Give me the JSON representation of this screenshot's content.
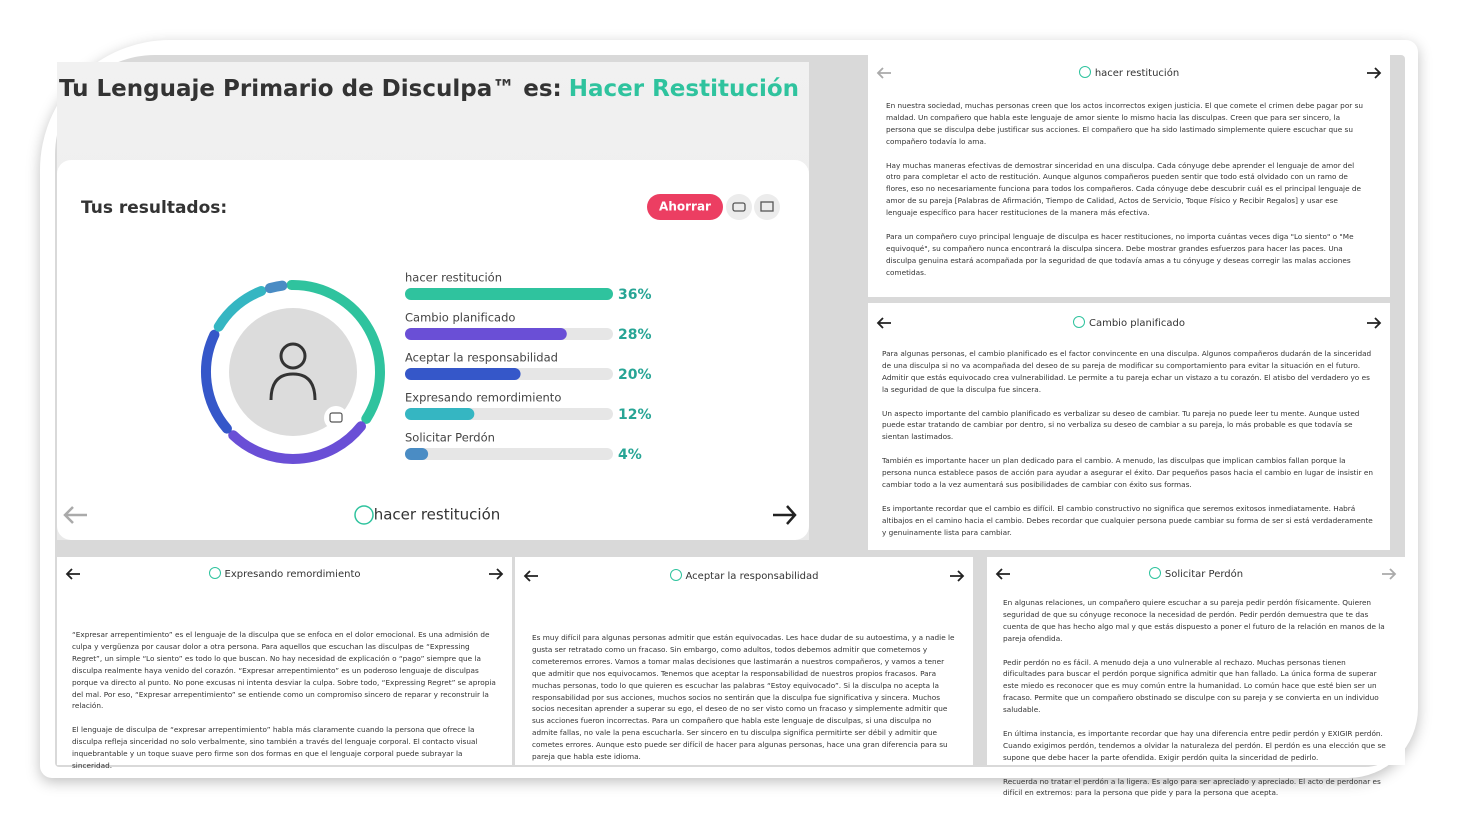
{
  "header": {
    "title": "Tu Lenguaje Primario de Disculpa™ es:",
    "highlight": "Hacer Restitución"
  },
  "results": {
    "heading": "Tus resultados:",
    "save_button": "Ahorrar",
    "nav_label": "hacer restitución"
  },
  "chart_data": {
    "type": "bar",
    "orientation": "horizontal",
    "categories": [
      "hacer restitución",
      "Cambio planificado",
      "Aceptar la responsabilidad",
      "Expresando remordimiento",
      "Solicitar Perdón"
    ],
    "values": [
      36,
      28,
      20,
      12,
      4
    ],
    "value_labels": [
      "36%",
      "28%",
      "20%",
      "12%",
      "4%"
    ],
    "colors": [
      "#2fc39e",
      "#6a4fd6",
      "#3557c9",
      "#35b6c2",
      "#4a8cc4"
    ],
    "xlim": [
      0,
      36
    ]
  },
  "cards": [
    {
      "title": "hacer restitución",
      "paragraphs": [
        "En nuestra sociedad, muchas personas creen que los actos incorrectos exigen justicia. El que comete el crimen debe pagar por su maldad. Un compañero que habla este lenguaje de amor siente lo mismo hacia las disculpas. Creen que para ser sincero, la persona que se disculpa debe justificar sus acciones. El compañero que ha sido lastimado simplemente quiere escuchar que su compañero todavía lo ama.",
        "Hay muchas maneras efectivas de demostrar sinceridad en una disculpa. Cada cónyuge debe aprender el lenguaje de amor del otro para completar el acto de restitución. Aunque algunos compañeros pueden sentir que todo está olvidado con un ramo de flores, eso no necesariamente funciona para todos los compañeros. Cada cónyuge debe descubrir cuál es el principal lenguaje de amor de su pareja [Palabras de Afirmación, Tiempo de Calidad, Actos de Servicio, Toque Físico y Recibir Regalos] y usar ese lenguaje específico para hacer restituciones de la manera más efectiva.",
        "Para un compañero cuyo principal lenguaje de disculpa es hacer restituciones, no importa cuántas veces diga \"Lo siento\" o \"Me equivoqué\", su compañero nunca encontrará la disculpa sincera. Debe mostrar grandes esfuerzos para hacer las paces. Una disculpa genuina estará acompañada por la seguridad de que todavía amas a tu cónyuge y deseas corregir las malas acciones cometidas."
      ]
    },
    {
      "title": "Cambio planificado",
      "paragraphs": [
        "Para algunas personas, el cambio planificado es el factor convincente en una disculpa. Algunos compañeros dudarán de la sinceridad de una disculpa si no va acompañada del deseo de su pareja de modificar su comportamiento para evitar la situación en el futuro. Admitir que estás equivocado crea vulnerabilidad. Le permite a tu pareja echar un vistazo a tu corazón. El atisbo del verdadero yo es la seguridad de que la disculpa fue sincera.",
        "Un aspecto importante del cambio planificado es verbalizar su deseo de cambiar. Tu pareja no puede leer tu mente. Aunque usted puede estar tratando de cambiar por dentro, si no verbaliza su deseo de cambiar a su pareja, lo más probable es que todavía se sientan lastimados.",
        "También es importante hacer un plan dedicado para el cambio. A menudo, las disculpas que implican cambios fallan porque la persona nunca establece pasos de acción para ayudar a asegurar el éxito. Dar pequeños pasos hacia el cambio en lugar de insistir en cambiar todo a la vez aumentará sus posibilidades de cambiar con éxito sus formas.",
        "Es importante recordar que el cambio es difícil. El cambio constructivo no significa que seremos exitosos inmediatamente. Habrá altibajos en el camino hacia el cambio. Debes recordar que cualquier persona puede cambiar su forma de ser si está verdaderamente y genuinamente lista para cambiar."
      ]
    },
    {
      "title": "Expresando remordimiento",
      "paragraphs": [
        "“Expresar arrepentimiento” es el lenguaje de la disculpa que se enfoca en el dolor emocional. Es una admisión de culpa y vergüenza por causar dolor a otra persona. Para aquellos que escuchan las disculpas de “Expressing Regret”, un simple “Lo siento” es todo lo que buscan. No hay necesidad de explicación o “pago” siempre que la disculpa realmente haya venido del corazón. “Expresar arrepentimiento” es un poderoso lenguaje de disculpas porque va directo al punto. No pone excusas ni intenta desviar la culpa. Sobre todo, “Expressing Regret” se apropia del mal. Por eso, “Expresar arrepentimiento” se entiende como un compromiso sincero de reparar y reconstruir la relación.",
        "El lenguaje de disculpa de “expresar arrepentimiento” habla más claramente cuando la persona que ofrece la disculpa refleja sinceridad no solo verbalmente, sino también a través del lenguaje corporal. El contacto visual inquebrantable y un toque suave pero firme son dos formas en que el lenguaje corporal puede subrayar la sinceridad."
      ]
    },
    {
      "title": "Aceptar la responsabilidad",
      "paragraphs": [
        "Es muy difícil para algunas personas admitir que están equivocadas. Les hace dudar de su autoestima, y a nadie le gusta ser retratado como un fracaso. Sin embargo, como adultos, todos debemos admitir que cometemos y cometeremos errores. Vamos a tomar malas decisiones que lastimarán a nuestros compañeros, y vamos a tener que admitir que nos equivocamos. Tenemos que aceptar la responsabilidad de nuestros propios fracasos. Para muchas personas, todo lo que quieren es escuchar las palabras “Estoy equivocado”. Si la disculpa no acepta la responsabilidad por sus acciones, muchos socios no sentirán que la disculpa fue significativa y sincera. Muchos socios necesitan aprender a superar su ego, el deseo de no ser visto como un fracaso y simplemente admitir que sus acciones fueron incorrectas. Para un compañero que habla este lenguaje de disculpas, si una disculpa no admite fallas, no vale la pena escucharla. Ser sincero en tu disculpa significa permitirte ser débil y admitir que cometes errores. Aunque esto puede ser difícil de hacer para algunas personas, hace una gran diferencia para su pareja que habla este idioma."
      ]
    },
    {
      "title": "Solicitar Perdón",
      "paragraphs": [
        "En algunas relaciones, un compañero quiere escuchar a su pareja pedir perdón físicamente. Quieren seguridad de que su cónyuge reconoce la necesidad de perdón. Pedir perdón demuestra que te das cuenta de que has hecho algo mal y que estás dispuesto a poner el futuro de la relación en manos de la pareja ofendida.",
        "Pedir perdón no es fácil. A menudo deja a uno vulnerable al rechazo. Muchas personas tienen dificultades para buscar el perdón porque significa admitir que han fallado. La única forma de superar este miedo es reconocer que es muy común entre la humanidad. Lo común hace que esté bien ser un fracaso. Permite que un compañero obstinado se disculpe con su pareja y se convierta en un individuo saludable.",
        "En última instancia, es importante recordar que hay una diferencia entre pedir perdón y EXIGIR perdón. Cuando exigimos perdón, tendemos a olvidar la naturaleza del perdón. El perdón es una elección que se supone que debe hacer la parte ofendida. Exigir perdón quita la sinceridad de pedirlo.",
        "Recuerda no tratar el perdón a la ligera. Es algo para ser apreciado y apreciado. El acto de perdonar es difícil en extremos: para la persona que pide y para la persona que acepta."
      ]
    }
  ]
}
